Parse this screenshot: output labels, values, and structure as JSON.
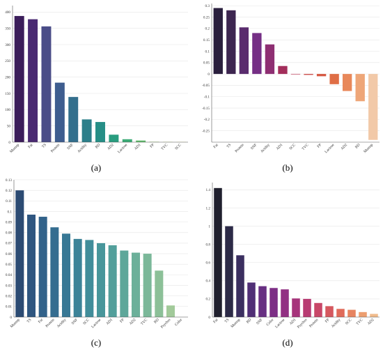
{
  "captions": [
    "(a)",
    "(b)",
    "(c)",
    "(d)"
  ],
  "chart_data": [
    {
      "type": "bar",
      "categories": [
        "Mumsp",
        "Fat",
        "TS",
        "Protein",
        "SNF",
        "Acidity",
        "RD",
        "AD2",
        "Lactose",
        "AD1",
        "FP",
        "TVC",
        "SCC"
      ],
      "values": [
        388,
        378,
        356,
        183,
        139,
        70,
        62,
        23,
        9,
        5,
        1,
        0.5,
        0.3
      ],
      "ylim": [
        0,
        420
      ],
      "yticks": [
        0,
        50,
        100,
        150,
        200,
        250,
        300,
        350,
        400
      ],
      "ytick_labels": [
        "0",
        "50",
        "100",
        "150",
        "200",
        "250",
        "300",
        "350",
        "400"
      ],
      "colors": [
        "#3b1d5a",
        "#4a2a72",
        "#4a4d88",
        "#3e5d8f",
        "#336f8d",
        "#2c7f8a",
        "#268e86",
        "#299d7f",
        "#3aaa75",
        "#5fb86a",
        "#8cc55c",
        "#b5d24f",
        "#dfe14a"
      ],
      "grid": "horizontal"
    },
    {
      "type": "bar",
      "categories": [
        "Fat",
        "TS",
        "Protein",
        "SNF",
        "Acidity",
        "AD1",
        "SCC",
        "TVC",
        "FP",
        "Lactose",
        "AD2",
        "RD",
        "Mumsp"
      ],
      "values": [
        0.29,
        0.28,
        0.205,
        0.18,
        0.13,
        0.035,
        -0.002,
        -0.004,
        -0.01,
        -0.045,
        -0.075,
        -0.12,
        -0.29
      ],
      "ylim": [
        -0.3,
        0.31
      ],
      "yticks": [
        -0.25,
        -0.2,
        -0.15,
        -0.1,
        -0.05,
        0,
        0.05,
        0.1,
        0.15,
        0.2,
        0.25,
        0.3
      ],
      "ytick_labels": [
        "-0.25",
        "-0.2",
        "-0.15",
        "-0.1",
        "-0.05",
        "0",
        "0.05",
        "0.1",
        "0.15",
        "0.2",
        "0.25",
        "0.3"
      ],
      "colors": [
        "#2a1f3d",
        "#3d2650",
        "#5a2c6e",
        "#752f85",
        "#8e2f72",
        "#a32e5b",
        "#b8324e",
        "#c8423f",
        "#d5563f",
        "#df6e45",
        "#e8885a",
        "#eea678",
        "#f2c9a8"
      ],
      "grid": "horizontal"
    },
    {
      "type": "bar",
      "categories": [
        "Mumsp",
        "TS",
        "Fat",
        "Protein",
        "Acidity",
        "SNF",
        "SCC",
        "Lactose",
        "AD1",
        "FP",
        "AD2",
        "TVC",
        "RD",
        "Psychro",
        "Color"
      ],
      "values": [
        0.12,
        0.097,
        0.095,
        0.085,
        0.079,
        0.074,
        0.073,
        0.07,
        0.068,
        0.063,
        0.061,
        0.06,
        0.044,
        0.011,
        0.0
      ],
      "ylim": [
        0,
        0.13
      ],
      "yticks": [
        0,
        0.01,
        0.02,
        0.03,
        0.04,
        0.05,
        0.06,
        0.07,
        0.08,
        0.09,
        0.1,
        0.11,
        0.12,
        0.13
      ],
      "ytick_labels": [
        "0",
        "0.01",
        "0.02",
        "0.03",
        "0.04",
        "0.05",
        "0.06",
        "0.07",
        "0.08",
        "0.09",
        "0.1",
        "0.11",
        "0.12",
        "0.13"
      ],
      "colors": [
        "#2c4b73",
        "#2f5680",
        "#32628a",
        "#356d90",
        "#387895",
        "#3c8398",
        "#418d9a",
        "#48969b",
        "#529f9b",
        "#5ea79a",
        "#6cb09a",
        "#7bb899",
        "#8cc098",
        "#a2ca9a",
        "#b8d39e"
      ],
      "grid": "horizontal"
    },
    {
      "type": "bar",
      "categories": [
        "Fat",
        "TS",
        "Mumsp",
        "RD",
        "SNF",
        "Color",
        "Lactose",
        "AD1",
        "Psychro",
        "Protein",
        "FP",
        "Acidity",
        "SCC",
        "TVC",
        "AD2"
      ],
      "values": [
        1.42,
        1.0,
        0.68,
        0.38,
        0.34,
        0.32,
        0.305,
        0.205,
        0.2,
        0.155,
        0.12,
        0.09,
        0.08,
        0.055,
        0.035
      ],
      "ylim": [
        0,
        1.48
      ],
      "yticks": [
        0,
        0.2,
        0.4,
        0.6,
        0.8,
        1,
        1.2,
        1.4
      ],
      "ytick_labels": [
        "0",
        "0.2",
        "0.4",
        "0.6",
        "0.8",
        "1",
        "1.2",
        "1.4"
      ],
      "colors": [
        "#20202e",
        "#2c2a47",
        "#3b2f60",
        "#502f76",
        "#672f82",
        "#7d2f86",
        "#923083",
        "#a6347b",
        "#b83b72",
        "#c84768",
        "#d5585f",
        "#e06b5a",
        "#e78461",
        "#ec9e70",
        "#f0bb8b"
      ],
      "grid": "horizontal"
    }
  ]
}
